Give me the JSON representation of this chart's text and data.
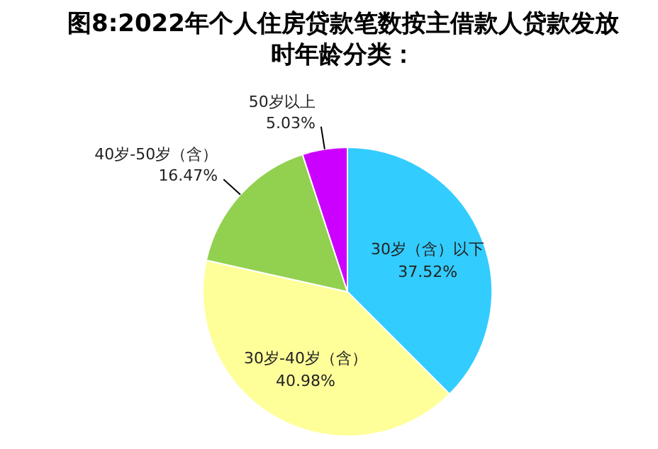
{
  "chart_data": {
    "type": "pie",
    "title": "图8:2022年个人住房贷款笔数按主借款人贷款发放时年龄分类：",
    "categories": [
      "30岁（含）以下",
      "30岁-40岁（含）",
      "40岁-50岁（含）",
      "50岁以上"
    ],
    "values": [
      37.52,
      40.98,
      16.47,
      5.03
    ],
    "colors": [
      "#33ccff",
      "#ffff99",
      "#92d050",
      "#cc00ff"
    ],
    "value_labels": [
      "37.52%",
      "40.98%",
      "16.47%",
      "5.03%"
    ],
    "legend": false
  }
}
